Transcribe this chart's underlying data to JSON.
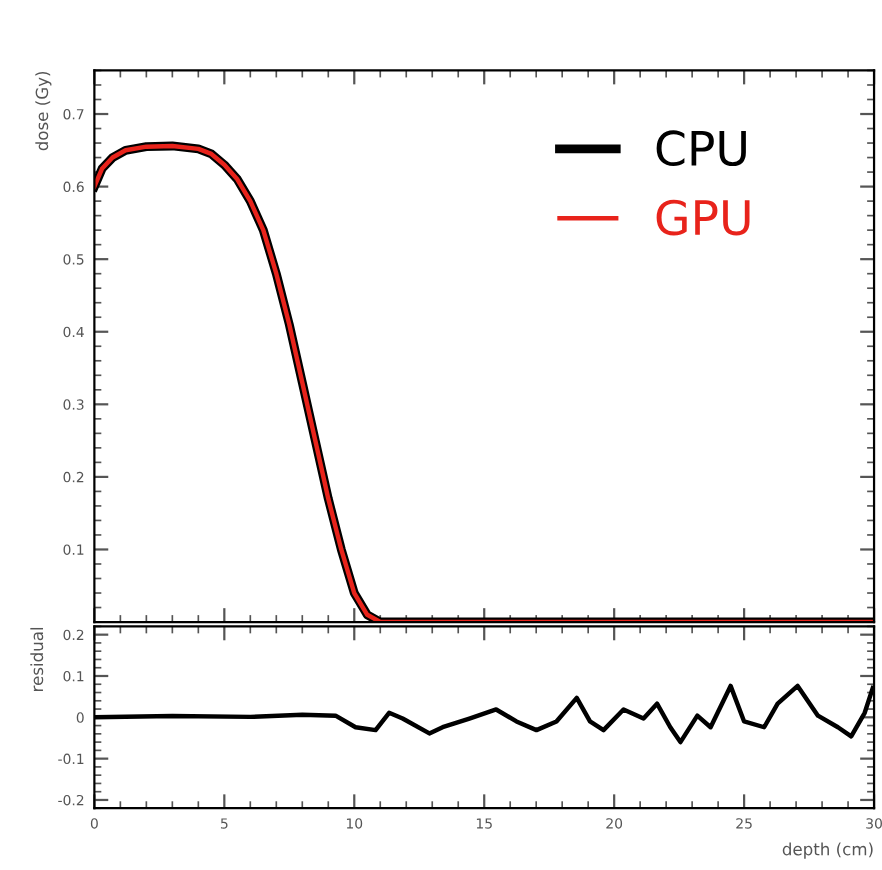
{
  "chart_data": [
    {
      "type": "line",
      "ylabel": "dose (Gy)",
      "xlim": [
        0,
        30
      ],
      "xticks": [
        0,
        5,
        10,
        15,
        20,
        25,
        30
      ],
      "ylim": [
        0,
        0.76
      ],
      "yticks": [
        0.1,
        0.2,
        0.3,
        0.4,
        0.5,
        0.6,
        0.7
      ],
      "tick_labels": "y",
      "grid": false,
      "legend": "top right",
      "x": [
        0,
        0.3,
        0.7,
        1.2,
        2,
        3,
        4,
        4.5,
        5,
        5.5,
        6,
        6.5,
        7,
        7.5,
        8,
        8.5,
        9,
        9.5,
        10,
        10.5,
        11,
        15,
        20,
        25,
        30
      ],
      "series": [
        {
          "name": "CPU",
          "color": "#000000",
          "values": [
            0.6,
            0.625,
            0.64,
            0.65,
            0.655,
            0.656,
            0.652,
            0.645,
            0.63,
            0.61,
            0.58,
            0.54,
            0.48,
            0.41,
            0.33,
            0.25,
            0.17,
            0.1,
            0.04,
            0.01,
            0.0,
            0.0,
            0.0,
            0.0,
            0.0
          ]
        },
        {
          "name": "GPU",
          "color": "#e8231b",
          "values": [
            0.6,
            0.625,
            0.64,
            0.65,
            0.655,
            0.656,
            0.652,
            0.645,
            0.63,
            0.61,
            0.58,
            0.54,
            0.48,
            0.41,
            0.33,
            0.25,
            0.17,
            0.1,
            0.04,
            0.01,
            0.0,
            0.0,
            0.0,
            0.0,
            0.0
          ]
        }
      ]
    },
    {
      "type": "line",
      "xlabel": "depth (cm)",
      "ylabel": "residual",
      "xlim": [
        0,
        30
      ],
      "xticks": [
        0,
        5,
        10,
        15,
        20,
        25,
        30
      ],
      "ylim": [
        -0.22,
        0.22
      ],
      "yticks": [
        -0.2,
        -0.1,
        0,
        0.1,
        0.2
      ],
      "grid": false,
      "legend": false,
      "x": [
        0,
        3,
        6,
        8,
        9.28,
        10.05,
        10.82,
        11.34,
        11.86,
        12.89,
        13.4,
        14.43,
        15.46,
        16.24,
        17.01,
        17.78,
        18.56,
        19.07,
        19.59,
        20.36,
        21.13,
        21.65,
        22.16,
        22.55,
        23.2,
        23.71,
        24.48,
        25.0,
        25.77,
        26.29,
        27.06,
        27.84,
        28.61,
        29.12,
        29.64,
        29.95
      ],
      "series": [
        {
          "color": "#000000",
          "values": [
            0,
            0.003,
            0.001,
            0.006,
            0.004,
            -0.024,
            -0.031,
            0.011,
            -0.003,
            -0.039,
            -0.024,
            -0.003,
            0.019,
            -0.01,
            -0.031,
            -0.01,
            0.047,
            -0.01,
            -0.031,
            0.019,
            -0.003,
            0.033,
            -0.024,
            -0.06,
            0.004,
            -0.024,
            0.076,
            -0.01,
            -0.024,
            0.033,
            0.076,
            0.004,
            -0.024,
            -0.046,
            0.011,
            0.071
          ]
        }
      ]
    }
  ]
}
